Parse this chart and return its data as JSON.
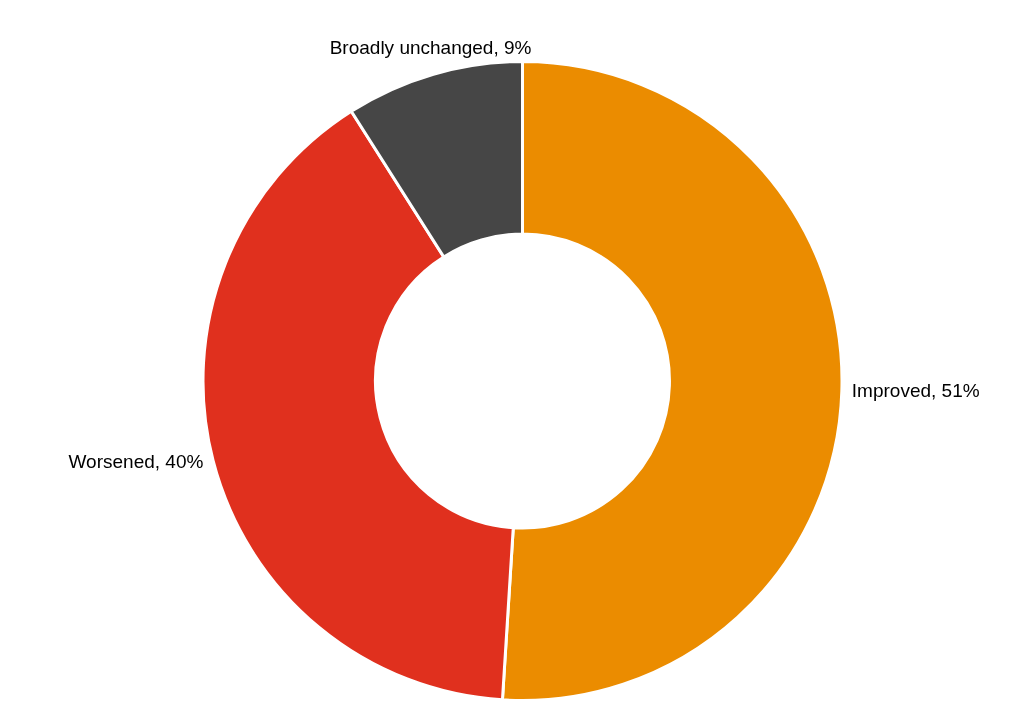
{
  "chart_data": {
    "type": "donut",
    "categories": [
      "Improved",
      "Worsened",
      "Broadly unchanged"
    ],
    "values": [
      51,
      40,
      9
    ],
    "colors": [
      "#eb8c00",
      "#e0301e",
      "#464646"
    ],
    "value_labels": [
      "51%",
      "40%",
      "9%"
    ],
    "legend": false
  }
}
